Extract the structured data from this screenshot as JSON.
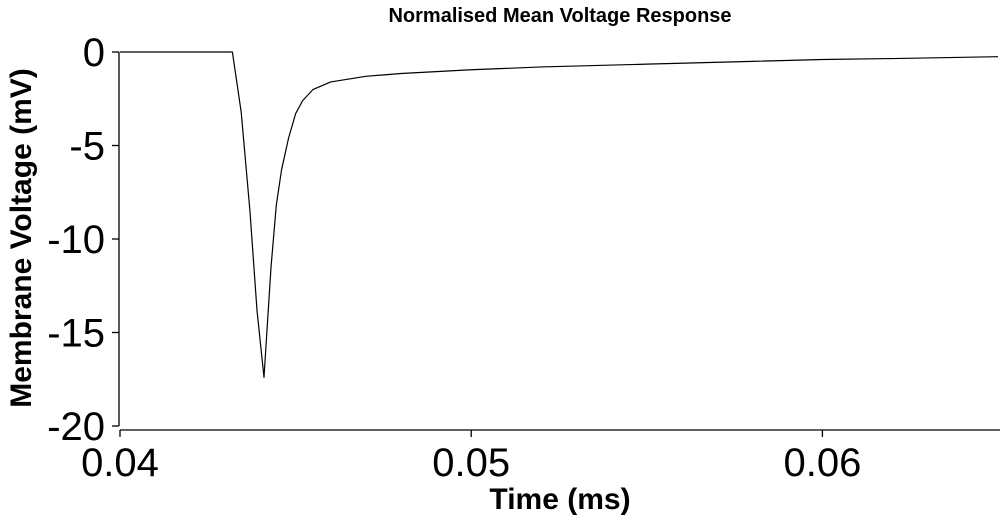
{
  "chart_data": {
    "type": "line",
    "title": "Normalised Mean Voltage Response",
    "xlabel": "Time (ms)",
    "ylabel": "Membrane Voltage (mV)",
    "xlim": [
      0.04,
      0.065
    ],
    "ylim": [
      -20,
      0
    ],
    "xticks": [
      0.04,
      0.05,
      0.06
    ],
    "xtick_labels": [
      "0.04",
      "0.05",
      "0.06"
    ],
    "yticks": [
      0,
      -5,
      -10,
      -15,
      -20
    ],
    "ytick_labels": [
      "0",
      "-5",
      "-10",
      "-15",
      "-20"
    ],
    "grid": false,
    "line_color": "#000000",
    "series": [
      {
        "x": [
          0.04,
          0.0432,
          0.04345,
          0.0437,
          0.0439,
          0.0441,
          0.0443,
          0.04445,
          0.0446,
          0.0448,
          0.045,
          0.0452,
          0.0455,
          0.046,
          0.047,
          0.048,
          0.05,
          0.052,
          0.055,
          0.058,
          0.06,
          0.062,
          0.065
        ],
        "y": [
          0,
          0,
          -3.2,
          -8.5,
          -13.8,
          -17.4,
          -11.5,
          -8.2,
          -6.3,
          -4.6,
          -3.3,
          -2.6,
          -2.0,
          -1.6,
          -1.3,
          -1.15,
          -0.95,
          -0.8,
          -0.65,
          -0.5,
          -0.4,
          -0.35,
          -0.25
        ]
      }
    ]
  }
}
